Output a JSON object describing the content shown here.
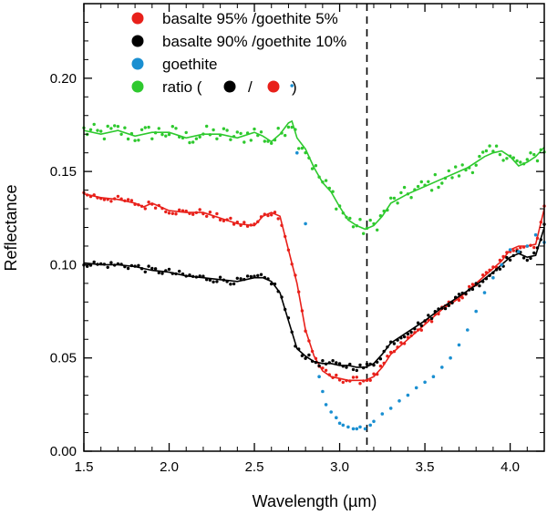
{
  "chart_data": {
    "type": "scatter",
    "title": "",
    "xlabel": "Wavelength (µm)",
    "ylabel": "Reflectance",
    "xlim": [
      1.5,
      4.2
    ],
    "ylim": [
      0.0,
      0.24
    ],
    "xticks": [
      1.5,
      2.0,
      2.5,
      3.0,
      3.5,
      4.0
    ],
    "xtick_labels": [
      "1.5",
      "2.0",
      "2.5",
      "3.0",
      "3.5",
      "4.0"
    ],
    "yticks": [
      0.0,
      0.05,
      0.1,
      0.15,
      0.2
    ],
    "ytick_labels": [
      "0.00",
      "0.05",
      "0.10",
      "0.15",
      "0.20"
    ],
    "vline": {
      "x": 3.16,
      "style": "dashed",
      "color": "#000000"
    },
    "legend": {
      "placement": "top-left",
      "entries": [
        {
          "label": "basalte 95% /goethite 5%",
          "color": "#e8201a"
        },
        {
          "label": "basalte 90% /goethite 10%",
          "color": "#000000"
        },
        {
          "label": "goethite",
          "color": "#1a8fd1"
        },
        {
          "label_prefix": "ratio (",
          "label_sep": "/",
          "label_suffix": ")",
          "color": "#2ec92e",
          "inline_markers": [
            "#000000",
            "#e8201a"
          ]
        }
      ]
    },
    "series": [
      {
        "name": "ratio",
        "color": "#2ec92e",
        "line_x": [
          1.5,
          1.6,
          1.7,
          1.8,
          1.9,
          2.0,
          2.1,
          2.2,
          2.3,
          2.4,
          2.5,
          2.55,
          2.6,
          2.65,
          2.7,
          2.72,
          2.75,
          2.8,
          2.85,
          2.9,
          2.95,
          3.0,
          3.05,
          3.1,
          3.15,
          3.2,
          3.25,
          3.3,
          3.4,
          3.5,
          3.6,
          3.7,
          3.75,
          3.8,
          3.85,
          3.9,
          3.95,
          4.0,
          4.05,
          4.1,
          4.15,
          4.2
        ],
        "line_y": [
          0.172,
          0.17,
          0.172,
          0.169,
          0.171,
          0.171,
          0.168,
          0.17,
          0.17,
          0.168,
          0.171,
          0.169,
          0.166,
          0.17,
          0.176,
          0.177,
          0.168,
          0.162,
          0.152,
          0.144,
          0.139,
          0.131,
          0.124,
          0.121,
          0.119,
          0.121,
          0.126,
          0.133,
          0.138,
          0.142,
          0.146,
          0.15,
          0.152,
          0.155,
          0.158,
          0.16,
          0.161,
          0.158,
          0.153,
          0.155,
          0.158,
          0.163
        ]
      },
      {
        "name": "basalte 95% /goethite 5%",
        "color": "#e8201a",
        "line_x": [
          1.5,
          1.6,
          1.7,
          1.8,
          1.85,
          1.9,
          2.0,
          2.1,
          2.2,
          2.3,
          2.4,
          2.5,
          2.55,
          2.6,
          2.65,
          2.7,
          2.75,
          2.8,
          2.85,
          2.9,
          2.95,
          3.0,
          3.05,
          3.1,
          3.15,
          3.2,
          3.25,
          3.3,
          3.4,
          3.5,
          3.6,
          3.7,
          3.8,
          3.9,
          3.95,
          4.0,
          4.05,
          4.1,
          4.15,
          4.2
        ],
        "line_y": [
          0.138,
          0.136,
          0.135,
          0.133,
          0.131,
          0.133,
          0.129,
          0.128,
          0.128,
          0.125,
          0.122,
          0.121,
          0.126,
          0.128,
          0.126,
          0.108,
          0.09,
          0.065,
          0.051,
          0.043,
          0.04,
          0.039,
          0.038,
          0.038,
          0.038,
          0.04,
          0.045,
          0.052,
          0.06,
          0.068,
          0.076,
          0.082,
          0.09,
          0.098,
          0.102,
          0.108,
          0.11,
          0.11,
          0.111,
          0.13
        ]
      },
      {
        "name": "basalte 90% /goethite 10%",
        "color": "#000000",
        "line_x": [
          1.5,
          1.6,
          1.7,
          1.8,
          1.9,
          2.0,
          2.1,
          2.2,
          2.3,
          2.4,
          2.5,
          2.55,
          2.6,
          2.65,
          2.7,
          2.75,
          2.8,
          2.85,
          2.9,
          2.95,
          3.0,
          3.05,
          3.1,
          3.15,
          3.2,
          3.25,
          3.3,
          3.4,
          3.5,
          3.6,
          3.7,
          3.8,
          3.9,
          4.0,
          4.05,
          4.1,
          4.15,
          4.2
        ],
        "line_y": [
          0.101,
          0.1,
          0.1,
          0.099,
          0.097,
          0.096,
          0.094,
          0.093,
          0.092,
          0.091,
          0.093,
          0.093,
          0.091,
          0.085,
          0.07,
          0.055,
          0.051,
          0.048,
          0.047,
          0.047,
          0.046,
          0.046,
          0.045,
          0.045,
          0.047,
          0.052,
          0.058,
          0.064,
          0.07,
          0.077,
          0.083,
          0.089,
          0.096,
          0.104,
          0.106,
          0.104,
          0.105,
          0.12
        ]
      },
      {
        "name": "goethite",
        "color": "#1a8fd1",
        "line_x": [],
        "line_y": [],
        "scatter_x": [
          2.72,
          2.75,
          2.8,
          2.88,
          2.9,
          2.92,
          2.95,
          2.98,
          3.0,
          3.02,
          3.05,
          3.08,
          3.1,
          3.12,
          3.15,
          3.18,
          3.2,
          3.25,
          3.3,
          3.35,
          3.4,
          3.45,
          3.5,
          3.55,
          3.6,
          3.65,
          3.7,
          3.75,
          3.8,
          3.85,
          3.9,
          3.95,
          4.0,
          4.05,
          4.1,
          4.15,
          4.2
        ],
        "scatter_y": [
          0.196,
          0.16,
          0.122,
          0.04,
          0.032,
          0.025,
          0.021,
          0.018,
          0.015,
          0.014,
          0.013,
          0.012,
          0.012,
          0.013,
          0.012,
          0.014,
          0.016,
          0.02,
          0.023,
          0.027,
          0.03,
          0.034,
          0.037,
          0.04,
          0.045,
          0.05,
          0.057,
          0.065,
          0.075,
          0.085,
          0.093,
          0.1,
          0.108,
          0.107,
          0.11,
          0.116,
          0.112
        ]
      }
    ]
  }
}
